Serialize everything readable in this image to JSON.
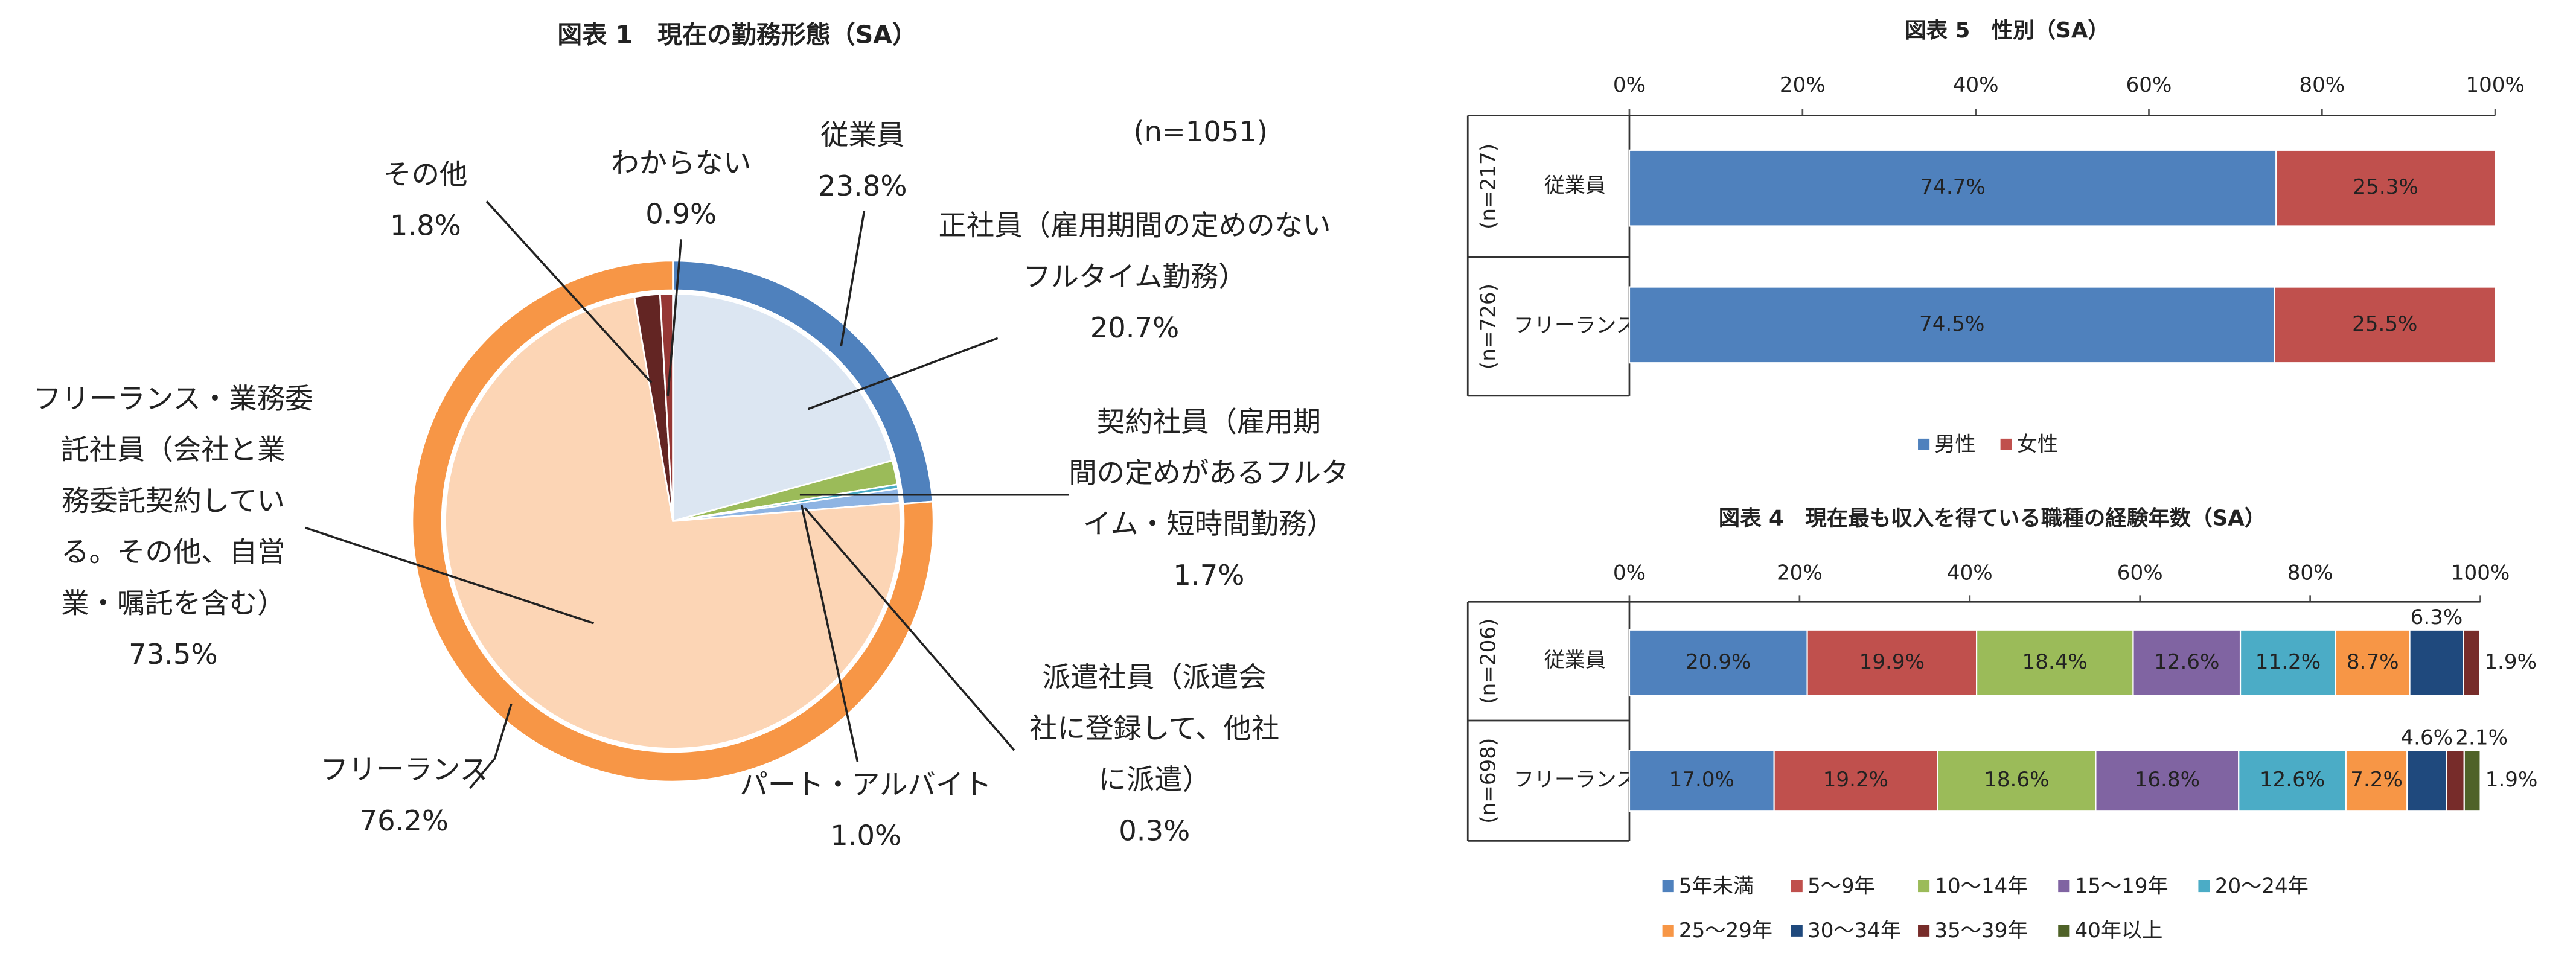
{
  "chart_data": [
    {
      "type": "nested-pie",
      "title": "図表 1　現在の勤務形態（SA）",
      "annotation": "(n=1051)",
      "rings": [
        {
          "categories": [
            [
              "従業員"
            ],
            [
              "フリーランス"
            ]
          ],
          "values": [
            23.8,
            76.2
          ],
          "value_labels": [
            "23.8%",
            "76.2%"
          ],
          "colors": [
            "#4f81bd",
            "#f79646"
          ]
        },
        {
          "categories": [
            [
              "正社員（雇用期間の定めのない",
              "フルタイム勤務）"
            ],
            [
              "契約社員（雇用期",
              "間の定めがあるフルタ",
              "イム・短時間勤務）"
            ],
            [
              "派遣社員（派遣会",
              "社に登録して、他社",
              "に派遣）"
            ],
            [
              "パート・アルバイト"
            ],
            [
              "フリーランス・業務委",
              "託社員（会社と業",
              "務委託契約してい",
              "る。その他、自営",
              "業・嘱託を含む）"
            ],
            [
              "その他"
            ],
            [
              "わからない"
            ]
          ],
          "values": [
            20.7,
            1.7,
            0.3,
            1.0,
            73.5,
            1.8,
            0.9
          ],
          "value_labels": [
            "20.7%",
            "1.7%",
            "0.3%",
            "1.0%",
            "73.5%",
            "1.8%",
            "0.9%"
          ],
          "colors": [
            "#dce6f2",
            "#9bbb59",
            "#4bacc6",
            "#8eb4e3",
            "#fcd5b5",
            "#632523",
            "#953735"
          ]
        }
      ]
    },
    {
      "type": "stacked-barh",
      "title": "図表 5　性別（SA）",
      "categories": [
        "従業員",
        "フリーランス"
      ],
      "sample_sizes": [
        "(n=217)",
        "(n=726)"
      ],
      "xlim": [
        0,
        100
      ],
      "xticks": [
        {
          "value": 0,
          "label": "0%"
        },
        {
          "value": 20,
          "label": "20%"
        },
        {
          "value": 40,
          "label": "40%"
        },
        {
          "value": 60,
          "label": "60%"
        },
        {
          "value": 80,
          "label": "80%"
        },
        {
          "value": 100,
          "label": "100%"
        }
      ],
      "legend": "bottom",
      "series": [
        {
          "name": "男性",
          "color": "#4f81bd",
          "values": [
            74.7,
            74.5
          ],
          "value_labels": [
            "74.7%",
            "74.5%"
          ]
        },
        {
          "name": "女性",
          "color": "#c0504d",
          "values": [
            25.3,
            25.5
          ],
          "value_labels": [
            "25.3%",
            "25.5%"
          ]
        }
      ]
    },
    {
      "type": "stacked-barh",
      "title": "図表 4　現在最も収入を得ている職種の経験年数（SA）",
      "categories": [
        "従業員",
        "フリーランス"
      ],
      "sample_sizes": [
        "(n=206)",
        "(n=698)"
      ],
      "xlim": [
        0,
        100
      ],
      "xticks": [
        {
          "value": 0,
          "label": "0%"
        },
        {
          "value": 20,
          "label": "20%"
        },
        {
          "value": 40,
          "label": "40%"
        },
        {
          "value": 60,
          "label": "60%"
        },
        {
          "value": 80,
          "label": "80%"
        },
        {
          "value": 100,
          "label": "100%"
        }
      ],
      "legend": "bottom",
      "series": [
        {
          "name": "5年未満",
          "color": "#4f81bd",
          "values": [
            20.9,
            17.0
          ],
          "value_labels": [
            "20.9%",
            "17.0%"
          ]
        },
        {
          "name": "5～9年",
          "color": "#c0504d",
          "values": [
            19.9,
            19.2
          ],
          "value_labels": [
            "19.9%",
            "19.2%"
          ]
        },
        {
          "name": "10～14年",
          "color": "#9bbb59",
          "values": [
            18.4,
            18.6
          ],
          "value_labels": [
            "18.4%",
            "18.6%"
          ]
        },
        {
          "name": "15～19年",
          "color": "#8064a2",
          "values": [
            12.6,
            16.8
          ],
          "value_labels": [
            "12.6%",
            "16.8%"
          ]
        },
        {
          "name": "20～24年",
          "color": "#4bacc6",
          "values": [
            11.2,
            12.6
          ],
          "value_labels": [
            "11.2%",
            "12.6%"
          ]
        },
        {
          "name": "25～29年",
          "color": "#f79646",
          "values": [
            8.7,
            7.2
          ],
          "value_labels": [
            "8.7%",
            "7.2%"
          ]
        },
        {
          "name": "30～34年",
          "color": "#1f497d",
          "values": [
            6.3,
            4.6
          ],
          "value_labels": [
            "6.3%",
            "4.6%"
          ]
        },
        {
          "name": "35～39年",
          "color": "#772c2a",
          "values": [
            1.9,
            2.1
          ],
          "value_labels": [
            "1.9%",
            "2.1%"
          ]
        },
        {
          "name": "40年以上",
          "color": "#4f6228",
          "values": [
            0,
            1.9
          ],
          "value_labels": [
            null,
            "1.9%"
          ]
        }
      ]
    }
  ]
}
